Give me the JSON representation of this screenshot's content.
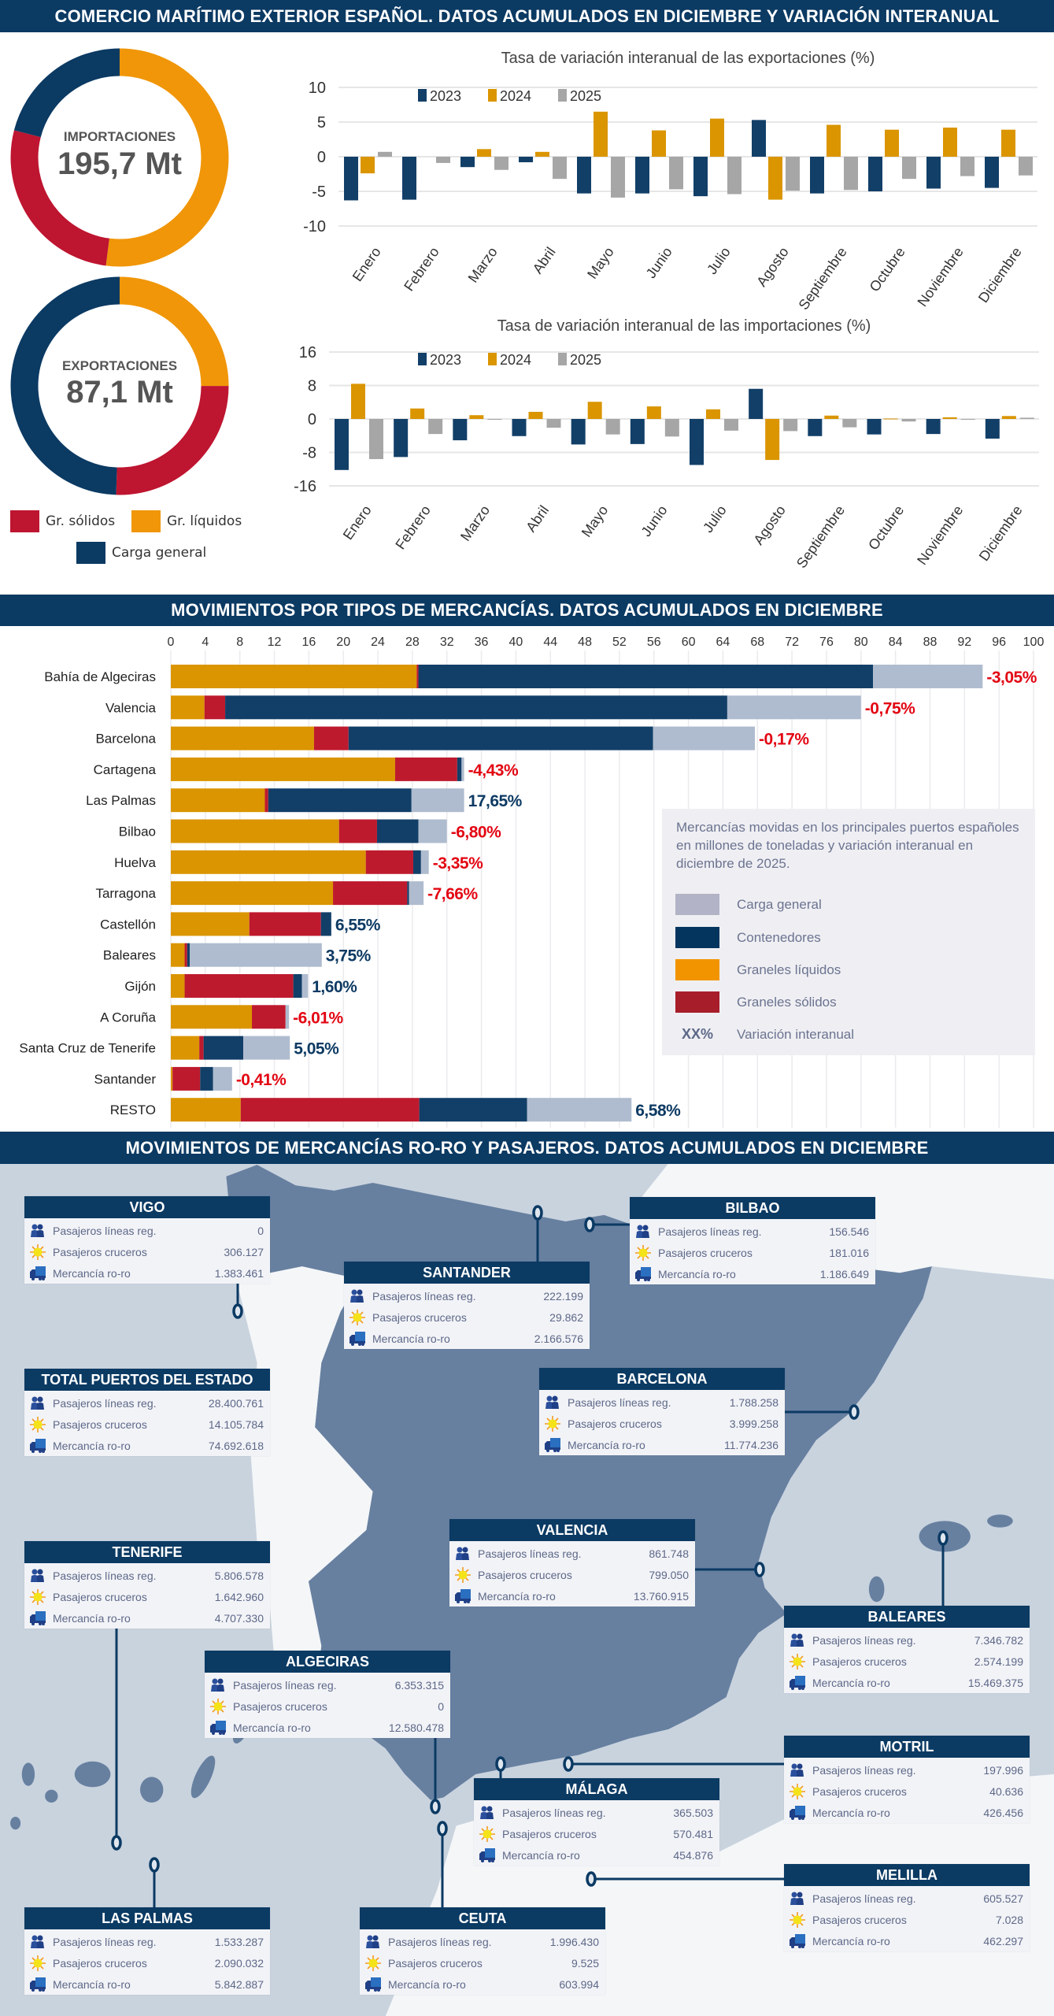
{
  "titles": {
    "section1": "COMERCIO MARÍTIMO EXTERIOR ESPAÑOL. DATOS ACUMULADOS EN DICIEMBRE Y VARIACIÓN INTERANUAL",
    "section2": "MOVIMIENTOS POR TIPOS DE MERCANCÍAS. DATOS ACUMULADOS EN DICIEMBRE",
    "section3": "MOVIMIENTOS DE MERCANCÍAS RO-RO Y PASAJEROS.  DATOS ACUMULADOS EN DICIEMBRE"
  },
  "colors": {
    "navy": "#0b3a63",
    "liquidos": "#f09608",
    "solidos": "#be1530",
    "general": "#0b3a63",
    "bar_liquidos": "#da9500",
    "bar_solidos": "#be1a2e",
    "bar_contenedores": "#123f68",
    "bar_general": "#afbccf",
    "y2023": "#123f68",
    "y2024": "#da9500",
    "y2025": "#a6a6a6",
    "negative": "#e30613",
    "positive": "#0d3a63",
    "sea": "#c9d3de",
    "land": "#6780a0",
    "foreign": "#f4f6f8"
  },
  "donuts": [
    {
      "label": "IMPORTACIONES",
      "total": "195,7 Mt",
      "shares_pct": {
        "Gr. líquidos": 52,
        "Gr. sólidos": 27,
        "Carga general": 21
      }
    },
    {
      "label": "EXPORTACIONES",
      "total": "87,1 Mt",
      "shares_pct": {
        "Gr. líquidos": 25,
        "Gr. sólidos": 25.5,
        "Carga general": 49.5
      }
    }
  ],
  "donut_legend": [
    "Gr. sólidos",
    "Gr. líquidos",
    "Carga general"
  ],
  "chart_data": [
    {
      "type": "bar",
      "title": "Tasa de variación interanual de las exportaciones (%)",
      "categories": [
        "Enero",
        "Febrero",
        "Marzo",
        "Abril",
        "Mayo",
        "Junio",
        "Julio",
        "Agosto",
        "Septiembre",
        "Octubre",
        "Noviembre",
        "Diciembre"
      ],
      "series": [
        {
          "name": "2023",
          "values": [
            -6.3,
            -6.2,
            -1.5,
            -0.8,
            -5.3,
            -5.3,
            -5.7,
            5.3,
            -5.3,
            -5.0,
            -4.6,
            -4.5
          ]
        },
        {
          "name": "2024",
          "values": [
            -2.4,
            0,
            1.1,
            0.7,
            6.5,
            3.8,
            5.5,
            -6.2,
            4.6,
            3.9,
            4.2,
            3.9
          ]
        },
        {
          "name": "2025",
          "values": [
            0.7,
            -0.9,
            -1.9,
            -3.2,
            -5.9,
            -4.7,
            -5.4,
            -4.9,
            -4.8,
            -3.2,
            -2.8,
            -2.7
          ]
        }
      ],
      "ylim": [
        -10,
        10
      ],
      "yticks": [
        10,
        5,
        0,
        -5,
        -10
      ],
      "grid": true,
      "legend": "top-left"
    },
    {
      "type": "bar",
      "title": "Tasa de variación interanual de las importaciones (%)",
      "categories": [
        "Enero",
        "Febrero",
        "Marzo",
        "Abril",
        "Mayo",
        "Junio",
        "Julio",
        "Agosto",
        "Septiembre",
        "Octubre",
        "Noviembre",
        "Diciembre"
      ],
      "series": [
        {
          "name": "2023",
          "values": [
            -12.2,
            -9.1,
            -5.1,
            -4.1,
            -6.1,
            -6.0,
            -11.0,
            7.2,
            -4.1,
            -3.7,
            -3.6,
            -4.7
          ]
        },
        {
          "name": "2024",
          "values": [
            8.4,
            2.5,
            0.9,
            1.7,
            4.1,
            3.0,
            2.3,
            -9.8,
            0.8,
            0.1,
            0.4,
            0.7
          ]
        },
        {
          "name": "2025",
          "values": [
            -9.6,
            -3.6,
            -0.2,
            -2.1,
            -3.7,
            -4.2,
            -2.8,
            -2.9,
            -2.0,
            -0.6,
            -0.2,
            0.3
          ]
        }
      ],
      "ylim": [
        -16,
        16
      ],
      "yticks": [
        16,
        8,
        0,
        -8,
        -16
      ],
      "grid": true,
      "legend": "top-left"
    },
    {
      "type": "bar",
      "orientation": "horizontal-stacked",
      "categories": [
        "Bahía de Algeciras",
        "Valencia",
        "Barcelona",
        "Cartagena",
        "Las Palmas",
        "Bilbao",
        "Huelva",
        "Tarragona",
        "Castellón",
        "Baleares",
        "Gijón",
        "A Coruña",
        "Santa Cruz de Tenerife",
        "Santander",
        "RESTO"
      ],
      "series": [
        {
          "name": "Graneles líquidos",
          "values": [
            28.5,
            3.9,
            16.6,
            26.0,
            10.9,
            19.5,
            22.6,
            18.8,
            9.1,
            1.6,
            1.6,
            9.4,
            3.3,
            0.2,
            8.1
          ]
        },
        {
          "name": "Graneles sólidos",
          "values": [
            0.2,
            2.4,
            4.0,
            7.2,
            0.4,
            4.4,
            5.5,
            8.6,
            8.3,
            0.3,
            12.6,
            3.9,
            0.5,
            3.2,
            20.7
          ]
        },
        {
          "name": "Contenedores",
          "values": [
            52.7,
            58.2,
            35.3,
            0.5,
            16.6,
            4.8,
            0.9,
            0.2,
            1.2,
            0.3,
            1.0,
            0,
            4.6,
            1.5,
            12.5
          ]
        },
        {
          "name": "Carga general",
          "values": [
            12.7,
            15.5,
            11.8,
            0.3,
            6.1,
            3.3,
            0.9,
            1.7,
            0,
            15.3,
            0.7,
            0.4,
            5.4,
            2.2,
            12.1
          ]
        }
      ],
      "variation": [
        "-3,05%",
        "-0,75%",
        "-0,17%",
        "-4,43%",
        "17,65%",
        "-6,80%",
        "-3,35%",
        "-7,66%",
        "6,55%",
        "3,75%",
        "1,60%",
        "-6,01%",
        "5,05%",
        "-0,41%",
        "6,58%"
      ],
      "xlim": [
        0,
        100
      ],
      "xticks": [
        0,
        4,
        8,
        12,
        16,
        20,
        24,
        28,
        32,
        36,
        40,
        44,
        48,
        52,
        56,
        60,
        64,
        68,
        72,
        76,
        80,
        84,
        88,
        92,
        96,
        100
      ],
      "grid": true,
      "legend": "bottom-right"
    }
  ],
  "bar_legend": {
    "description": "Mercancías movidas en los principales puertos españoles en millones de toneladas y variación interanual en diciembre de 2025.",
    "items": [
      "Carga general",
      "Contenedores",
      "Graneles líquidos",
      "Graneles sólidos"
    ],
    "item_colors": [
      "#b2b3c6",
      "#04355e",
      "#f29400",
      "#a81d2a"
    ],
    "variation_marker": "XX%",
    "variation_label": "Variación interanual"
  },
  "map": {
    "row_labels": [
      "Pasajeros líneas reg.",
      "Pasajeros cruceros",
      "Mercancía ro-ro"
    ],
    "row_icons": [
      "people-icon",
      "sun-icon",
      "truck-icon"
    ],
    "ports": [
      {
        "name": "VIGO",
        "values": [
          "0",
          "306.127",
          "1.383.461"
        ]
      },
      {
        "name": "BILBAO",
        "values": [
          "156.546",
          "181.016",
          "1.186.649"
        ]
      },
      {
        "name": "SANTANDER",
        "values": [
          "222.199",
          "29.862",
          "2.166.576"
        ]
      },
      {
        "name": "TOTAL PUERTOS DEL ESTADO",
        "values": [
          "28.400.761",
          "14.105.784",
          "74.692.618"
        ]
      },
      {
        "name": "BARCELONA",
        "values": [
          "1.788.258",
          "3.999.258",
          "11.774.236"
        ]
      },
      {
        "name": "TENERIFE",
        "values": [
          "5.806.578",
          "1.642.960",
          "4.707.330"
        ]
      },
      {
        "name": "VALENCIA",
        "values": [
          "861.748",
          "799.050",
          "13.760.915"
        ]
      },
      {
        "name": "BALEARES",
        "values": [
          "7.346.782",
          "2.574.199",
          "15.469.375"
        ]
      },
      {
        "name": "ALGECIRAS",
        "values": [
          "6.353.315",
          "0",
          "12.580.478"
        ]
      },
      {
        "name": "MOTRIL",
        "values": [
          "197.996",
          "40.636",
          "426.456"
        ]
      },
      {
        "name": "MÁLAGA",
        "values": [
          "365.503",
          "570.481",
          "454.876"
        ]
      },
      {
        "name": "MELILLA",
        "values": [
          "605.527",
          "7.028",
          "462.297"
        ]
      },
      {
        "name": "LAS PALMAS",
        "values": [
          "1.533.287",
          "2.090.032",
          "5.842.887"
        ]
      },
      {
        "name": "CEUTA",
        "values": [
          "1.996.430",
          "9.525",
          "603.994"
        ]
      }
    ]
  }
}
